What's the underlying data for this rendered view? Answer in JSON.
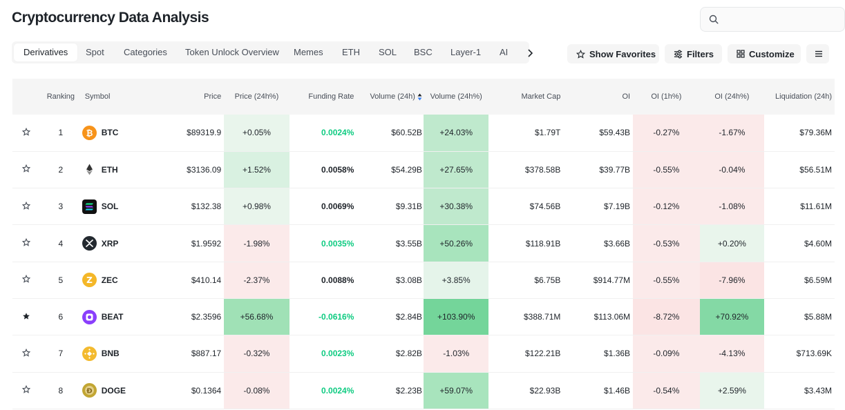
{
  "title": "Cryptocurrency Data Analysis",
  "search": {
    "placeholder": ""
  },
  "tabs": [
    "Derivatives",
    "Spot",
    "Categories",
    "Token Unlock Overview",
    "Memes",
    "ETH",
    "SOL",
    "BSC",
    "Layer-1",
    "AI"
  ],
  "toolbar": {
    "favorites": "Show Favorites",
    "filters": "Filters",
    "customize": "Customize"
  },
  "columns": [
    "Ranking",
    "Symbol",
    "Price",
    "Price (24h%)",
    "Funding Rate",
    "Volume (24h)",
    "Volume (24h%)",
    "Market Cap",
    "OI",
    "OI (1h%)",
    "OI (24h%)",
    "Liquidation (24h)"
  ],
  "rows": [
    {
      "rank": "1",
      "symbol": "BTC",
      "price": "$89319.9",
      "price_chg": "+0.05%",
      "funding": "0.0024%",
      "volume": "$60.52B",
      "volume_chg": "+24.03%",
      "mcap": "$1.79T",
      "oi": "$59.43B",
      "oi_1h": "-0.27%",
      "oi_24h": "-1.67%",
      "liq": "$79.36M"
    },
    {
      "rank": "2",
      "symbol": "ETH",
      "price": "$3136.09",
      "price_chg": "+1.52%",
      "funding": "0.0058%",
      "volume": "$54.29B",
      "volume_chg": "+27.65%",
      "mcap": "$378.58B",
      "oi": "$39.77B",
      "oi_1h": "-0.55%",
      "oi_24h": "-0.04%",
      "liq": "$56.51M"
    },
    {
      "rank": "3",
      "symbol": "SOL",
      "price": "$132.38",
      "price_chg": "+0.98%",
      "funding": "0.0069%",
      "volume": "$9.31B",
      "volume_chg": "+30.38%",
      "mcap": "$74.56B",
      "oi": "$7.19B",
      "oi_1h": "-0.12%",
      "oi_24h": "-1.08%",
      "liq": "$11.61M"
    },
    {
      "rank": "4",
      "symbol": "XRP",
      "price": "$1.9592",
      "price_chg": "-1.98%",
      "funding": "0.0035%",
      "volume": "$3.55B",
      "volume_chg": "+50.26%",
      "mcap": "$118.91B",
      "oi": "$3.66B",
      "oi_1h": "-0.53%",
      "oi_24h": "+0.20%",
      "liq": "$4.60M"
    },
    {
      "rank": "5",
      "symbol": "ZEC",
      "price": "$410.14",
      "price_chg": "-2.37%",
      "funding": "0.0088%",
      "volume": "$3.08B",
      "volume_chg": "+3.85%",
      "mcap": "$6.75B",
      "oi": "$914.77M",
      "oi_1h": "-0.55%",
      "oi_24h": "-7.96%",
      "liq": "$6.59M"
    },
    {
      "rank": "6",
      "symbol": "BEAT",
      "price": "$2.3596",
      "price_chg": "+56.68%",
      "funding": "-0.0616%",
      "volume": "$2.84B",
      "volume_chg": "+103.90%",
      "mcap": "$388.71M",
      "oi": "$113.06M",
      "oi_1h": "-8.72%",
      "oi_24h": "+70.92%",
      "liq": "$5.88M"
    },
    {
      "rank": "7",
      "symbol": "BNB",
      "price": "$887.17",
      "price_chg": "-0.32%",
      "funding": "0.0023%",
      "volume": "$2.82B",
      "volume_chg": "-1.03%",
      "mcap": "$122.21B",
      "oi": "$1.36B",
      "oi_1h": "-0.09%",
      "oi_24h": "-4.13%",
      "liq": "$713.69K"
    },
    {
      "rank": "8",
      "symbol": "DOGE",
      "price": "$0.1364",
      "price_chg": "-0.08%",
      "funding": "0.0024%",
      "volume": "$2.23B",
      "volume_chg": "+59.07%",
      "mcap": "$22.93B",
      "oi": "$1.46B",
      "oi_1h": "-0.54%",
      "oi_24h": "+2.59%",
      "liq": "$3.43M"
    }
  ],
  "cell_colors": {
    "price_chg": [
      "#e9f5ec",
      "#d9f1e1",
      "#e9f5ec",
      "#fbeaea",
      "#fbeaea",
      "#a0e1b6",
      "#fbeaea",
      "#fbeaea"
    ],
    "volume_chg": [
      "#bfe9cd",
      "#bfe9cd",
      "#bfe9cd",
      "#a8e4bd",
      "#e5f4ea",
      "#74d59a",
      "#fbeaea",
      "#a8e4bd"
    ],
    "oi_1h": [
      "#fbeaea",
      "#fbeaea",
      "#fbeaea",
      "#fbeaea",
      "#fbeaea",
      "#fbe4e4",
      "#fbeaea",
      "#fbeaea"
    ],
    "oi_24h": [
      "#fbeaea",
      "#fbeaea",
      "#fbeaea",
      "#e9f5ec",
      "#fbe4e4",
      "#84d9a5",
      "#fbeaea",
      "#e9f5ec"
    ]
  },
  "funding_green": [
    true,
    false,
    false,
    true,
    false,
    true,
    true,
    true
  ],
  "favorited": [
    false,
    false,
    false,
    false,
    false,
    true,
    false,
    false
  ],
  "coin_colors": {
    "BTC": "#f7931a",
    "ETH": "#ffffff",
    "SOL": "#111111",
    "XRP": "#23292f",
    "ZEC": "#f4b728",
    "BEAT": "#8a3ffc",
    "BNB": "#f3ba2f",
    "DOGE": "#c2a633"
  },
  "icons": {
    "search": "search-icon",
    "star": "star-icon",
    "filters": "sliders-icon",
    "customize": "grid-icon",
    "more": "menu-icon",
    "next": "chevron-right-icon",
    "sort": "sort-icon"
  }
}
